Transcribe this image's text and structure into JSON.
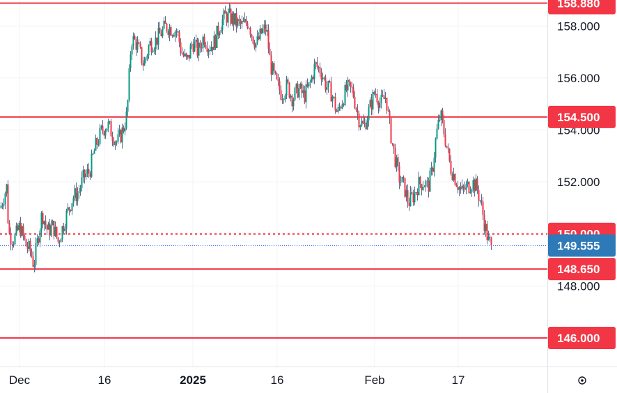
{
  "chart_data": {
    "type": "candlestick",
    "y_axis": {
      "ticks": [
        146,
        148,
        150,
        152,
        154,
        156,
        158
      ],
      "tick_labels": [
        "146.000",
        "148.000",
        "150.000",
        "152.000",
        "154.000",
        "156.000",
        "158.000"
      ],
      "ylim": [
        144.9,
        159.0
      ]
    },
    "x_axis": {
      "tick_labels": [
        "Dec",
        "16",
        "2025",
        "16",
        "Feb",
        "17"
      ],
      "bold_labels": [
        "2025"
      ]
    },
    "horizontal_levels": [
      {
        "value": 158.88,
        "label": "158.880",
        "style": "solid",
        "color": "#f23645"
      },
      {
        "value": 154.5,
        "label": "154.500",
        "style": "solid",
        "color": "#f23645"
      },
      {
        "value": 150.0,
        "label": "150.000",
        "style": "dotted",
        "color": "#f23645"
      },
      {
        "value": 148.65,
        "label": "148.650",
        "style": "solid",
        "color": "#f23645"
      },
      {
        "value": 146.0,
        "label": "146.000",
        "style": "solid",
        "color": "#f23645"
      }
    ],
    "last_price": {
      "value": 149.555,
      "label": "149.555",
      "color": "#2962ff",
      "badge_color": "#2e7ab8"
    },
    "colors": {
      "up": "#089981",
      "down": "#f23645",
      "wick": "#5b6b8c"
    },
    "price_path": [
      {
        "x": 0,
        "y": 151.0
      },
      {
        "x": 9,
        "y": 151.8
      },
      {
        "x": 12,
        "y": 150.0
      },
      {
        "x": 20,
        "y": 149.8
      },
      {
        "x": 28,
        "y": 150.3
      },
      {
        "x": 36,
        "y": 149.6
      },
      {
        "x": 44,
        "y": 149.3
      },
      {
        "x": 48,
        "y": 148.8
      },
      {
        "x": 55,
        "y": 150.0
      },
      {
        "x": 60,
        "y": 150.8
      },
      {
        "x": 68,
        "y": 150.1
      },
      {
        "x": 76,
        "y": 150.3
      },
      {
        "x": 83,
        "y": 149.7
      },
      {
        "x": 90,
        "y": 150.3
      },
      {
        "x": 96,
        "y": 150.8
      },
      {
        "x": 104,
        "y": 151.4
      },
      {
        "x": 112,
        "y": 151.6
      },
      {
        "x": 120,
        "y": 152.2
      },
      {
        "x": 128,
        "y": 152.4
      },
      {
        "x": 136,
        "y": 153.3
      },
      {
        "x": 146,
        "y": 154.0
      },
      {
        "x": 154,
        "y": 154.2
      },
      {
        "x": 160,
        "y": 153.9
      },
      {
        "x": 168,
        "y": 153.5
      },
      {
        "x": 176,
        "y": 154.0
      },
      {
        "x": 182,
        "y": 154.6
      },
      {
        "x": 188,
        "y": 157.5
      },
      {
        "x": 194,
        "y": 157.4
      },
      {
        "x": 200,
        "y": 157.0
      },
      {
        "x": 206,
        "y": 156.5
      },
      {
        "x": 214,
        "y": 157.3
      },
      {
        "x": 222,
        "y": 157.4
      },
      {
        "x": 230,
        "y": 157.7
      },
      {
        "x": 238,
        "y": 158.0
      },
      {
        "x": 246,
        "y": 157.9
      },
      {
        "x": 254,
        "y": 157.8
      },
      {
        "x": 260,
        "y": 157.0
      },
      {
        "x": 268,
        "y": 156.6
      },
      {
        "x": 276,
        "y": 157.4
      },
      {
        "x": 284,
        "y": 157.0
      },
      {
        "x": 292,
        "y": 157.6
      },
      {
        "x": 300,
        "y": 157.2
      },
      {
        "x": 308,
        "y": 157.4
      },
      {
        "x": 316,
        "y": 158.1
      },
      {
        "x": 324,
        "y": 158.4
      },
      {
        "x": 332,
        "y": 158.3
      },
      {
        "x": 340,
        "y": 158.1
      },
      {
        "x": 348,
        "y": 158.0
      },
      {
        "x": 356,
        "y": 158.2
      },
      {
        "x": 362,
        "y": 157.6
      },
      {
        "x": 368,
        "y": 157.3
      },
      {
        "x": 376,
        "y": 157.8
      },
      {
        "x": 382,
        "y": 157.9
      },
      {
        "x": 388,
        "y": 156.5
      },
      {
        "x": 396,
        "y": 155.8
      },
      {
        "x": 404,
        "y": 155.4
      },
      {
        "x": 412,
        "y": 155.7
      },
      {
        "x": 420,
        "y": 155.2
      },
      {
        "x": 428,
        "y": 155.6
      },
      {
        "x": 436,
        "y": 155.3
      },
      {
        "x": 444,
        "y": 155.7
      },
      {
        "x": 452,
        "y": 156.5
      },
      {
        "x": 460,
        "y": 156.3
      },
      {
        "x": 468,
        "y": 155.7
      },
      {
        "x": 476,
        "y": 155.4
      },
      {
        "x": 484,
        "y": 154.6
      },
      {
        "x": 490,
        "y": 155.1
      },
      {
        "x": 498,
        "y": 155.6
      },
      {
        "x": 506,
        "y": 155.5
      },
      {
        "x": 514,
        "y": 154.5
      },
      {
        "x": 522,
        "y": 154.1
      },
      {
        "x": 530,
        "y": 154.8
      },
      {
        "x": 538,
        "y": 155.5
      },
      {
        "x": 546,
        "y": 155.0
      },
      {
        "x": 554,
        "y": 155.3
      },
      {
        "x": 558,
        "y": 154.3
      },
      {
        "x": 564,
        "y": 153.3
      },
      {
        "x": 572,
        "y": 152.2
      },
      {
        "x": 580,
        "y": 151.8
      },
      {
        "x": 586,
        "y": 151.2
      },
      {
        "x": 594,
        "y": 151.5
      },
      {
        "x": 600,
        "y": 151.9
      },
      {
        "x": 608,
        "y": 152.0
      },
      {
        "x": 614,
        "y": 151.8
      },
      {
        "x": 620,
        "y": 152.4
      },
      {
        "x": 626,
        "y": 153.8
      },
      {
        "x": 632,
        "y": 154.6
      },
      {
        "x": 638,
        "y": 153.8
      },
      {
        "x": 646,
        "y": 152.6
      },
      {
        "x": 654,
        "y": 152.1
      },
      {
        "x": 662,
        "y": 151.6
      },
      {
        "x": 670,
        "y": 151.8
      },
      {
        "x": 678,
        "y": 152.0
      },
      {
        "x": 684,
        "y": 151.8
      },
      {
        "x": 690,
        "y": 151.2
      },
      {
        "x": 696,
        "y": 150.3
      },
      {
        "x": 701,
        "y": 149.7
      },
      {
        "x": 706,
        "y": 149.55
      }
    ]
  }
}
